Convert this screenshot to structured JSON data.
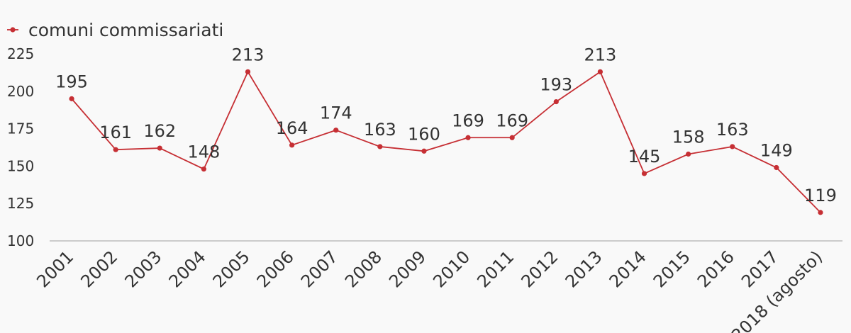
{
  "chart_data": {
    "type": "line",
    "categories": [
      "2001",
      "2002",
      "2003",
      "2004",
      "2005",
      "2006",
      "2007",
      "2008",
      "2009",
      "2010",
      "2011",
      "2012",
      "2013",
      "2014",
      "2015",
      "2016",
      "2017",
      "2018 (agosto)"
    ],
    "series": [
      {
        "name": "comuni commissariati",
        "color": "#c62f34",
        "values": [
          195,
          161,
          162,
          148,
          213,
          164,
          174,
          163,
          160,
          169,
          169,
          193,
          213,
          145,
          158,
          163,
          149,
          119
        ]
      }
    ],
    "ylim": [
      100,
      225
    ],
    "yticks": [
      100,
      125,
      150,
      175,
      200,
      225
    ],
    "grid": false,
    "legend": "top-left"
  }
}
